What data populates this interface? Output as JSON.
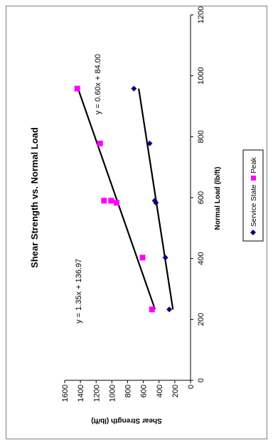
{
  "chart_data": {
    "type": "scatter",
    "title": "Shear Strength vs. Normal Load",
    "xlabel": "Normal Load (lb/ft)",
    "ylabel": "Shear Strength (lb/ft)",
    "xlim": [
      0,
      1200
    ],
    "ylim": [
      0,
      1600
    ],
    "x_ticks": [
      "0",
      "200",
      "400",
      "600",
      "800",
      "1000",
      "1200"
    ],
    "y_ticks": [
      "0",
      "200",
      "400",
      "600",
      "800",
      "1000",
      "1200",
      "1400",
      "1600"
    ],
    "orientation": "rotated 90 degrees counter-clockwise",
    "grid": false,
    "legend_position": "bottom",
    "series": [
      {
        "name": "Service State",
        "marker": "diamond",
        "color": "#000080",
        "points": [
          [
            233,
            270
          ],
          [
            403,
            320
          ],
          [
            583,
            440
          ],
          [
            590,
            455
          ],
          [
            778,
            520
          ],
          [
            958,
            720
          ]
        ],
        "trendline": {
          "slope": 0.6,
          "intercept": 84.0,
          "x_range": [
            233,
            958
          ],
          "label": "y = 0.60x + 84.00"
        }
      },
      {
        "name": "Peak",
        "marker": "square",
        "color": "#ff00ff",
        "points": [
          [
            233,
            490
          ],
          [
            403,
            610
          ],
          [
            583,
            940
          ],
          [
            590,
            1010
          ],
          [
            590,
            1100
          ],
          [
            778,
            1150
          ],
          [
            958,
            1440
          ]
        ],
        "trendline": {
          "slope": 1.35,
          "intercept": 136.97,
          "x_range": [
            233,
            958
          ],
          "label": "y = 1.35x + 136.97"
        }
      }
    ]
  }
}
